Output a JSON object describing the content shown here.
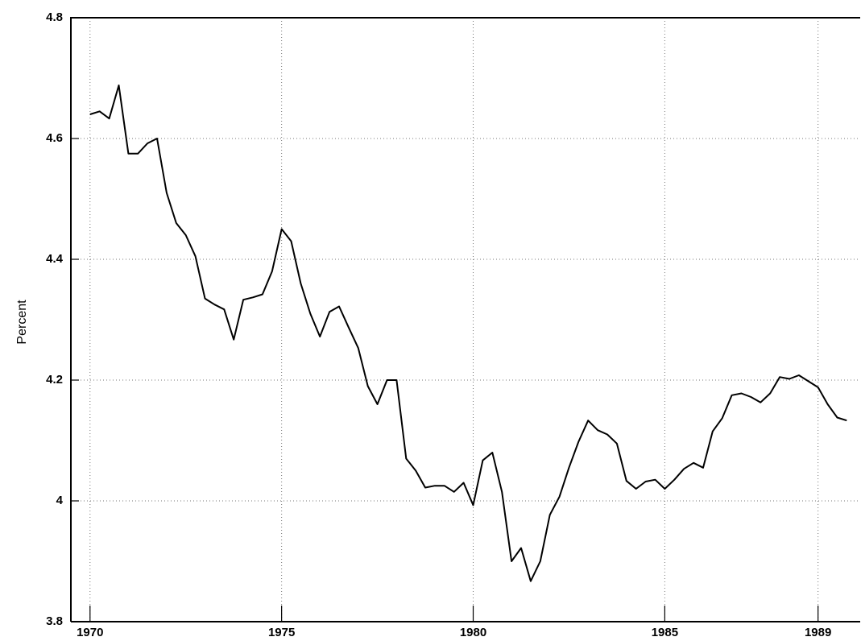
{
  "chart_data": {
    "type": "line",
    "y_label": "Percent",
    "x": [
      1970,
      1970.25,
      1970.5,
      1970.75,
      1971,
      1971.25,
      1971.5,
      1971.75,
      1972,
      1972.25,
      1972.5,
      1972.75,
      1973,
      1973.25,
      1973.5,
      1973.75,
      1974,
      1974.25,
      1974.5,
      1974.75,
      1975,
      1975.25,
      1975.5,
      1975.75,
      1976,
      1976.25,
      1976.5,
      1976.75,
      1977,
      1977.25,
      1977.5,
      1977.75,
      1978,
      1978.25,
      1978.5,
      1978.75,
      1979,
      1979.25,
      1979.5,
      1979.75,
      1980,
      1980.25,
      1980.5,
      1980.75,
      1981,
      1981.25,
      1981.5,
      1981.75,
      1982,
      1982.25,
      1982.5,
      1982.75,
      1983,
      1983.25,
      1983.5,
      1983.75,
      1984,
      1984.25,
      1984.5,
      1984.75,
      1985,
      1985.25,
      1985.5,
      1985.75,
      1986,
      1986.25,
      1986.5,
      1986.75,
      1987,
      1987.25,
      1987.5,
      1987.75,
      1988,
      1988.25,
      1988.5,
      1988.75,
      1989,
      1989.25,
      1989.5,
      1989.75
    ],
    "values": [
      4.64,
      4.645,
      4.633,
      4.688,
      4.575,
      4.575,
      4.592,
      4.6,
      4.51,
      4.46,
      4.44,
      4.405,
      4.335,
      4.325,
      4.317,
      4.267,
      4.333,
      4.337,
      4.342,
      4.38,
      4.45,
      4.43,
      4.36,
      4.31,
      4.272,
      4.313,
      4.322,
      4.287,
      4.253,
      4.19,
      4.16,
      4.2,
      4.2,
      4.07,
      4.05,
      4.022,
      4.025,
      4.025,
      4.015,
      4.03,
      3.993,
      4.067,
      4.08,
      4.015,
      3.9,
      3.922,
      3.867,
      3.9,
      3.977,
      4.007,
      4.055,
      4.098,
      4.133,
      4.117,
      4.11,
      4.095,
      4.033,
      4.02,
      4.032,
      4.035,
      4.02,
      4.035,
      4.053,
      4.063,
      4.055,
      4.115,
      4.137,
      4.175,
      4.178,
      4.172,
      4.163,
      4.178,
      4.205,
      4.202,
      4.208,
      4.198,
      4.188,
      4.16,
      4.138,
      4.133
    ],
    "color": "#000000",
    "xlim": [
      1969.5,
      1990.1
    ],
    "xticks": [
      1970,
      1975,
      1980,
      1985,
      1989
    ],
    "ylim": [
      3.8,
      4.8
    ],
    "yticks": [
      3.8,
      4,
      4.2,
      4.4,
      4.6,
      4.8
    ],
    "grid": true
  }
}
